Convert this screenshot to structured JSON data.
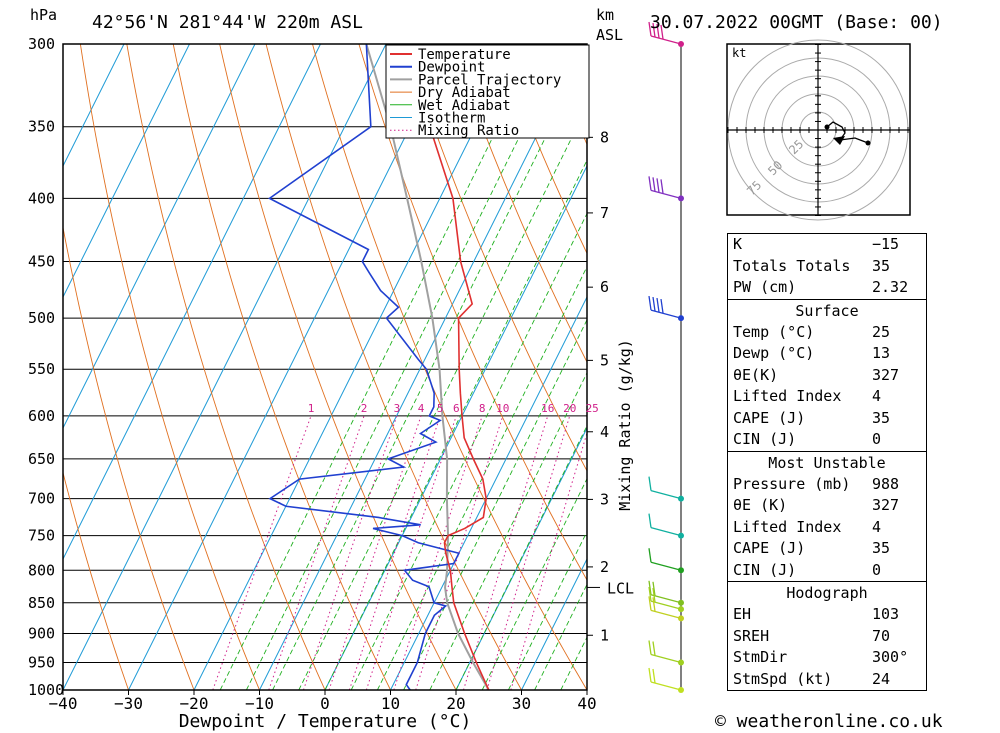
{
  "header": {
    "location": "42°56'N  281°44'W  220m  ASL",
    "datetime": "30.07.2022  00GMT  (Base: 00)",
    "pressure_unit": "hPa",
    "height_unit": "km",
    "height_ref": "ASL"
  },
  "chart_data": {
    "type": "skew-t",
    "xlabel": "Dewpoint / Temperature (°C)",
    "mixing_ratio_label": "Mixing Ratio (g/kg)",
    "x_ticks": [
      "−40",
      "−30",
      "−20",
      "−10",
      "0",
      "10",
      "20",
      "30",
      "40"
    ],
    "xlim": [
      -40,
      40
    ],
    "pressure_levels": [
      300,
      350,
      400,
      450,
      500,
      550,
      600,
      650,
      700,
      750,
      800,
      850,
      900,
      950,
      1000
    ],
    "km_ticks": [
      {
        "km": "1",
        "p": 903
      },
      {
        "km": "2",
        "p": 795
      },
      {
        "km": "3",
        "p": 701
      },
      {
        "km": "4",
        "p": 618
      },
      {
        "km": "5",
        "p": 541
      },
      {
        "km": "6",
        "p": 472
      },
      {
        "km": "7",
        "p": 411
      },
      {
        "km": "8",
        "p": 357
      }
    ],
    "lcl": {
      "label": "LCL",
      "p": 826
    },
    "mixing_ratio_values": [
      "1",
      "2",
      "3",
      "4",
      "5",
      "6",
      "8",
      "10",
      "16",
      "20",
      "25"
    ],
    "legend": [
      "Temperature",
      "Dewpoint",
      "Parcel Trajectory",
      "Dry Adiabat",
      "Wet Adiabat",
      "Isotherm",
      "Mixing Ratio"
    ],
    "colors": {
      "temperature": "#e03030",
      "dewpoint": "#2040d0",
      "parcel": "#a0a0a0",
      "dry_adiabat": "#e07020",
      "wet_adiabat": "#20b020",
      "isotherm": "#1e9ad6",
      "mixing_ratio": "#d0208a"
    },
    "temperature_profile": [
      {
        "p": 1000,
        "t": 25
      },
      {
        "p": 950,
        "t": 21
      },
      {
        "p": 900,
        "t": 17
      },
      {
        "p": 850,
        "t": 13
      },
      {
        "p": 825,
        "t": 11.5
      },
      {
        "p": 800,
        "t": 10
      },
      {
        "p": 775,
        "t": 8
      },
      {
        "p": 760,
        "t": 7
      },
      {
        "p": 750,
        "t": 7
      },
      {
        "p": 740,
        "t": 9
      },
      {
        "p": 725,
        "t": 11
      },
      {
        "p": 700,
        "t": 10
      },
      {
        "p": 675,
        "t": 8
      },
      {
        "p": 650,
        "t": 5
      },
      {
        "p": 625,
        "t": 2
      },
      {
        "p": 600,
        "t": 0
      },
      {
        "p": 575,
        "t": -2
      },
      {
        "p": 550,
        "t": -4
      },
      {
        "p": 500,
        "t": -8
      },
      {
        "p": 487,
        "t": -7
      },
      {
        "p": 450,
        "t": -12
      },
      {
        "p": 400,
        "t": -18
      },
      {
        "p": 350,
        "t": -27
      },
      {
        "p": 300,
        "t": -37
      }
    ],
    "dewpoint_profile": [
      {
        "p": 1000,
        "t": 13
      },
      {
        "p": 990,
        "t": 12
      },
      {
        "p": 950,
        "t": 12
      },
      {
        "p": 900,
        "t": 11
      },
      {
        "p": 870,
        "t": 11
      },
      {
        "p": 855,
        "t": 12
      },
      {
        "p": 850,
        "t": 10
      },
      {
        "p": 825,
        "t": 8
      },
      {
        "p": 815,
        "t": 5
      },
      {
        "p": 800,
        "t": 3
      },
      {
        "p": 790,
        "t": 10
      },
      {
        "p": 775,
        "t": 10
      },
      {
        "p": 760,
        "t": 3
      },
      {
        "p": 750,
        "t": 0
      },
      {
        "p": 740,
        "t": -5
      },
      {
        "p": 735,
        "t": 2
      },
      {
        "p": 725,
        "t": -5
      },
      {
        "p": 710,
        "t": -20
      },
      {
        "p": 700,
        "t": -23
      },
      {
        "p": 675,
        "t": -20
      },
      {
        "p": 660,
        "t": -5
      },
      {
        "p": 650,
        "t": -8
      },
      {
        "p": 630,
        "t": -2
      },
      {
        "p": 620,
        "t": -5
      },
      {
        "p": 605,
        "t": -3
      },
      {
        "p": 600,
        "t": -5
      },
      {
        "p": 590,
        "t": -5
      },
      {
        "p": 575,
        "t": -6
      },
      {
        "p": 550,
        "t": -9
      },
      {
        "p": 540,
        "t": -11
      },
      {
        "p": 500,
        "t": -19
      },
      {
        "p": 490,
        "t": -18
      },
      {
        "p": 475,
        "t": -22
      },
      {
        "p": 460,
        "t": -25
      },
      {
        "p": 450,
        "t": -27
      },
      {
        "p": 440,
        "t": -27
      },
      {
        "p": 400,
        "t": -46
      },
      {
        "p": 350,
        "t": -36
      },
      {
        "p": 300,
        "t": -43
      }
    ],
    "parcel_trajectory": [
      {
        "p": 1000,
        "t": 25
      },
      {
        "p": 950,
        "t": 20.5
      },
      {
        "p": 900,
        "t": 16
      },
      {
        "p": 850,
        "t": 12
      },
      {
        "p": 826,
        "t": 10.5
      },
      {
        "p": 800,
        "t": 9.5
      },
      {
        "p": 750,
        "t": 7
      },
      {
        "p": 700,
        "t": 4
      },
      {
        "p": 650,
        "t": 1
      },
      {
        "p": 600,
        "t": -3
      },
      {
        "p": 550,
        "t": -7
      },
      {
        "p": 500,
        "t": -12
      },
      {
        "p": 450,
        "t": -18
      },
      {
        "p": 400,
        "t": -25
      },
      {
        "p": 350,
        "t": -33
      },
      {
        "p": 300,
        "t": -43
      }
    ],
    "wind_levels": [
      {
        "p": 300,
        "color": "#d0208a"
      },
      {
        "p": 400,
        "color": "#8030c0"
      },
      {
        "p": 500,
        "color": "#2040d0"
      },
      {
        "p": 700,
        "color": "#10b0a0"
      },
      {
        "p": 750,
        "color": "#10b0a0"
      },
      {
        "p": 800,
        "color": "#20a020"
      },
      {
        "p": 850,
        "color": "#80c020"
      },
      {
        "p": 860,
        "color": "#a0d020"
      },
      {
        "p": 875,
        "color": "#c0d020"
      },
      {
        "p": 950,
        "color": "#a0d020"
      },
      {
        "p": 1000,
        "color": "#c0e020"
      }
    ]
  },
  "hodograph": {
    "unit": "kt",
    "ring_labels": [
      "25",
      "50",
      "75"
    ]
  },
  "indices": {
    "general": [
      {
        "label": "K",
        "value": "−15"
      },
      {
        "label": "Totals Totals",
        "value": "35"
      },
      {
        "label": "PW (cm)",
        "value": "2.32"
      }
    ],
    "surface": {
      "title": "Surface",
      "rows": [
        {
          "label": "Temp (°C)",
          "value": "25"
        },
        {
          "label": "Dewp (°C)",
          "value": "13"
        },
        {
          "label": "θE(K)",
          "value": "327"
        },
        {
          "label": "Lifted Index",
          "value": "4"
        },
        {
          "label": "CAPE (J)",
          "value": "35"
        },
        {
          "label": "CIN (J)",
          "value": "0"
        }
      ]
    },
    "most_unstable": {
      "title": "Most Unstable",
      "rows": [
        {
          "label": "Pressure (mb)",
          "value": "988"
        },
        {
          "label": "θE (K)",
          "value": "327"
        },
        {
          "label": "Lifted Index",
          "value": "4"
        },
        {
          "label": "CAPE (J)",
          "value": "35"
        },
        {
          "label": "CIN (J)",
          "value": "0"
        }
      ]
    },
    "hodograph_params": {
      "title": "Hodograph",
      "rows": [
        {
          "label": "EH",
          "value": "103"
        },
        {
          "label": "SREH",
          "value": "70"
        },
        {
          "label": "StmDir",
          "value": "300°"
        },
        {
          "label": "StmSpd (kt)",
          "value": "24"
        }
      ]
    }
  },
  "footer": {
    "copyright": "© weatheronline.co.uk"
  }
}
